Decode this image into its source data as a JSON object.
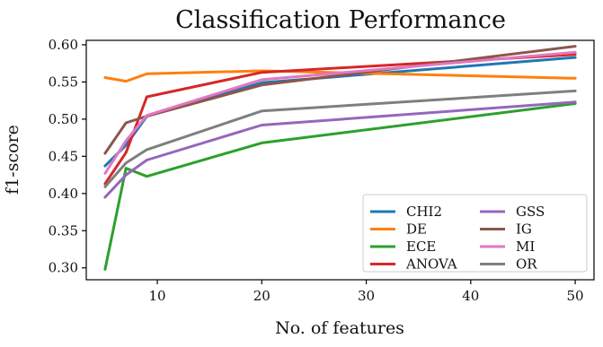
{
  "chart_data": {
    "type": "line",
    "title": "Classification Performance",
    "xlabel": "No. of features",
    "ylabel": "f1-score",
    "xlim": [
      3.2,
      51.8
    ],
    "ylim": [
      0.284,
      0.606
    ],
    "xticks": [
      10,
      20,
      30,
      40,
      50
    ],
    "yticks": [
      0.3,
      0.35,
      0.4,
      0.45,
      0.5,
      0.55,
      0.6
    ],
    "xtick_labels": [
      "10",
      "20",
      "30",
      "40",
      "50"
    ],
    "ytick_labels": [
      "0.30",
      "0.35",
      "0.40",
      "0.45",
      "0.50",
      "0.55",
      "0.60"
    ],
    "grid": false,
    "legend_position": "bottom-right",
    "legend_columns": 2,
    "x": [
      5,
      7,
      9,
      20,
      50
    ],
    "series": [
      {
        "name": "CHI2",
        "color": "#1f77b4",
        "values": [
          0.437,
          0.465,
          0.504,
          0.549,
          0.583
        ]
      },
      {
        "name": "DE",
        "color": "#ff7f0e",
        "values": [
          0.556,
          0.551,
          0.561,
          0.565,
          0.555
        ]
      },
      {
        "name": "ECE",
        "color": "#2ca02c",
        "values": [
          0.298,
          0.434,
          0.423,
          0.468,
          0.521
        ]
      },
      {
        "name": "ANOVA",
        "color": "#d62728",
        "values": [
          0.413,
          0.455,
          0.53,
          0.563,
          0.587
        ]
      },
      {
        "name": "GSS",
        "color": "#9467bd",
        "values": [
          0.395,
          0.425,
          0.445,
          0.492,
          0.523
        ]
      },
      {
        "name": "IG",
        "color": "#8c564b",
        "values": [
          0.454,
          0.495,
          0.504,
          0.546,
          0.598
        ]
      },
      {
        "name": "MI",
        "color": "#e377c2",
        "values": [
          0.427,
          0.471,
          0.505,
          0.553,
          0.59
        ]
      },
      {
        "name": "OR",
        "color": "#7f7f7f",
        "values": [
          0.409,
          0.441,
          0.459,
          0.511,
          0.538
        ]
      }
    ]
  }
}
